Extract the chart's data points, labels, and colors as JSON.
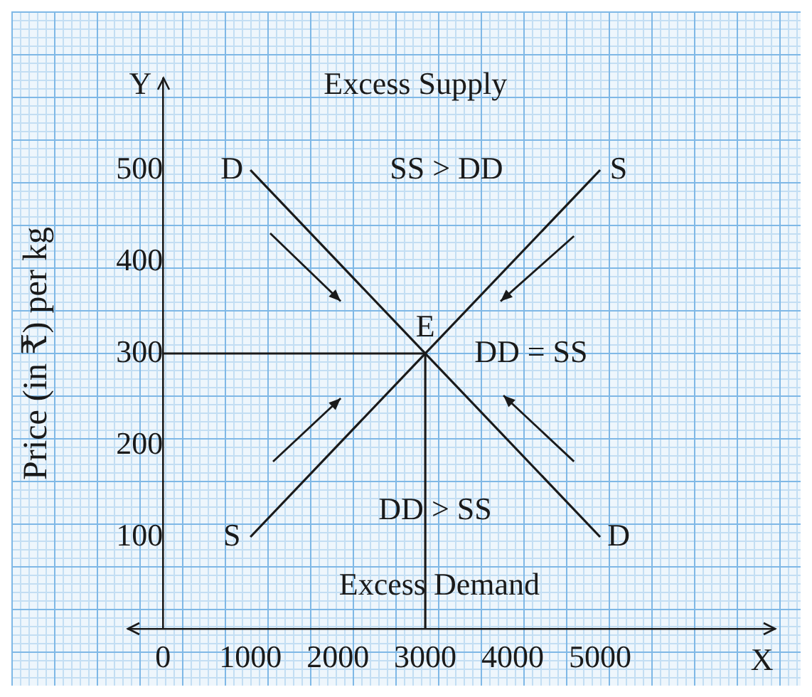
{
  "chart_data": {
    "type": "line",
    "ylabel": "Price (in ₹) per kg",
    "xlim": [
      -400,
      7000
    ],
    "ylim": [
      0,
      600
    ],
    "xticks": [
      0,
      1000,
      2000,
      3000,
      4000,
      5000
    ],
    "yticks": [
      100,
      200,
      300,
      400,
      500
    ],
    "grid": false,
    "marker": "none",
    "line_style": "solid",
    "series": [
      {
        "color": "#1a1a1a",
        "x": [
          1000,
          5000
        ],
        "values": [
          500,
          100
        ]
      },
      {
        "color": "#1a1a1a",
        "x": [
          1000,
          5000
        ],
        "values": [
          100,
          500
        ]
      },
      {
        "color": "#1a1a1a",
        "x": [
          0,
          3000
        ],
        "values": [
          300,
          300
        ]
      },
      {
        "color": "#1a1a1a",
        "x": [
          3000,
          3000
        ],
        "values": [
          0,
          300
        ]
      }
    ],
    "annotations": [
      {
        "text": "D",
        "x": 1000,
        "y": 500
      },
      {
        "text": "D",
        "x": 5000,
        "y": 100
      },
      {
        "text": "S",
        "x": 1000,
        "y": 100
      },
      {
        "text": "S",
        "x": 5000,
        "y": 500
      },
      {
        "text": "E",
        "x": 3000,
        "y": 300
      },
      "Excess Supply",
      "SS > DD",
      "DD = SS",
      "DD > SS",
      "Excess Demand",
      "X",
      "Y"
    ]
  }
}
